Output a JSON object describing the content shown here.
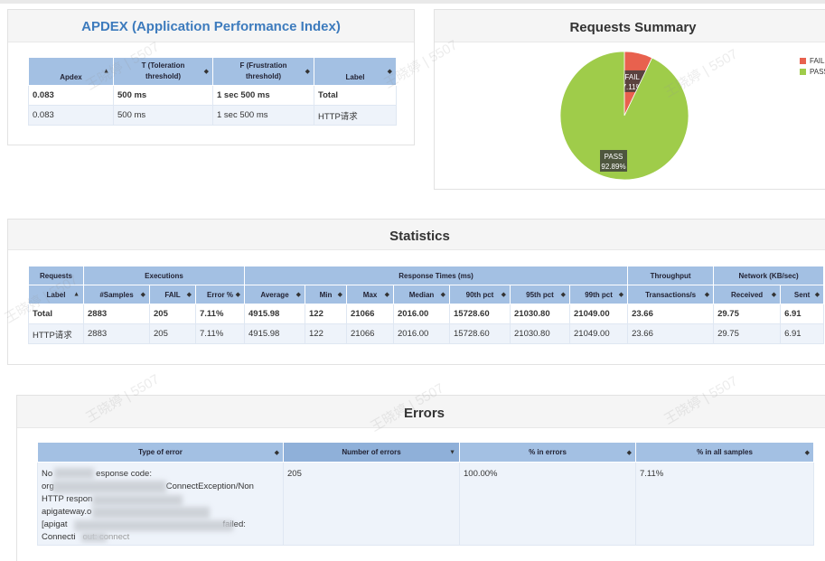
{
  "apdex": {
    "title": "APDEX (Application Performance Index)",
    "headers": [
      "Apdex",
      "T (Toleration threshold)",
      "F (Frustration threshold)",
      "Label"
    ],
    "rows": [
      [
        "0.083",
        "500 ms",
        "1 sec 500 ms",
        "Total"
      ],
      [
        "0.083",
        "500 ms",
        "1 sec 500 ms",
        "HTTP请求"
      ]
    ]
  },
  "summary": {
    "title": "Requests Summary",
    "legend": [
      {
        "label": "FAIL",
        "color": "#e8614e"
      },
      {
        "label": "PASS",
        "color": "#9fcc4a"
      }
    ],
    "chart_data": {
      "type": "pie",
      "title": "Requests Summary",
      "slices": [
        {
          "label": "FAIL",
          "value": 7.11,
          "display": "7.11%",
          "color": "#e8614e"
        },
        {
          "label": "PASS",
          "value": 92.89,
          "display": "92.89%",
          "color": "#9fcc4a"
        }
      ],
      "legend_position": "top-right"
    }
  },
  "statistics": {
    "title": "Statistics",
    "groups": [
      {
        "label": "Requests"
      },
      {
        "label": "Executions"
      },
      {
        "label": "Response Times (ms)"
      },
      {
        "label": "Throughput"
      },
      {
        "label": "Network (KB/sec)"
      }
    ],
    "columns": [
      "Label",
      "#Samples",
      "FAIL",
      "Error %",
      "Average",
      "Min",
      "Max",
      "Median",
      "90th pct",
      "95th pct",
      "99th pct",
      "Transactions/s",
      "Received",
      "Sent"
    ],
    "rows": [
      [
        "Total",
        "2883",
        "205",
        "7.11%",
        "4915.98",
        "122",
        "21066",
        "2016.00",
        "15728.60",
        "21030.80",
        "21049.00",
        "23.66",
        "29.75",
        "6.91"
      ],
      [
        "HTTP请求",
        "2883",
        "205",
        "7.11%",
        "4915.98",
        "122",
        "21066",
        "2016.00",
        "15728.60",
        "21030.80",
        "21049.00",
        "23.66",
        "29.75",
        "6.91"
      ]
    ]
  },
  "errors": {
    "title": "Errors",
    "headers": [
      "Type of error",
      "Number of errors",
      "% in errors",
      "% in all samples"
    ],
    "row": {
      "type_lines": [
        "No",
        "org",
        "HTTP respon",
        "apigateway.o",
        "[apigat",
        "Connecti"
      ],
      "type_tails": [
        "esponse code:",
        "ConnectException/Non",
        "",
        "",
        "failed:",
        "out: connect"
      ],
      "count": "205",
      "pct_errors": "100.00%",
      "pct_all": "7.11%"
    }
  },
  "watermark": "王晓婷 | 5507"
}
